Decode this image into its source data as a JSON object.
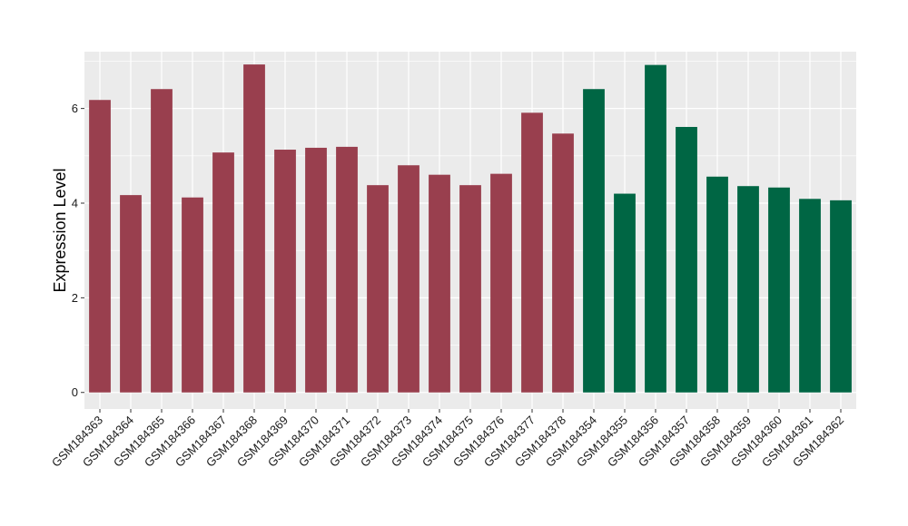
{
  "chart_data": {
    "type": "bar",
    "title": "",
    "xlabel": "",
    "ylabel": "Expression Level",
    "ylim": [
      -0.35,
      7.2
    ],
    "yticks": [
      0,
      2,
      4,
      6
    ],
    "grid": true,
    "legend": "none",
    "categories": [
      "GSM184363",
      "GSM184364",
      "GSM184365",
      "GSM184366",
      "GSM184367",
      "GSM184368",
      "GSM184369",
      "GSM184370",
      "GSM184371",
      "GSM184372",
      "GSM184373",
      "GSM184374",
      "GSM184375",
      "GSM184376",
      "GSM184377",
      "GSM184378",
      "GSM184354",
      "GSM184355",
      "GSM184356",
      "GSM184357",
      "GSM184358",
      "GSM184359",
      "GSM184360",
      "GSM184361",
      "GSM184362"
    ],
    "values": [
      6.18,
      4.17,
      6.41,
      4.12,
      5.07,
      6.93,
      5.13,
      5.17,
      5.19,
      4.38,
      4.8,
      4.6,
      4.38,
      4.62,
      5.91,
      5.47,
      6.41,
      4.2,
      6.92,
      5.61,
      4.56,
      4.36,
      4.33,
      4.09,
      4.06
    ],
    "groups": [
      0,
      0,
      0,
      0,
      0,
      0,
      0,
      0,
      0,
      0,
      0,
      0,
      0,
      0,
      0,
      0,
      1,
      1,
      1,
      1,
      1,
      1,
      1,
      1,
      1
    ],
    "group_colors": [
      "#993f4e",
      "#006644"
    ],
    "panel_color": "#ebebeb",
    "grid_color": "#ffffff"
  }
}
